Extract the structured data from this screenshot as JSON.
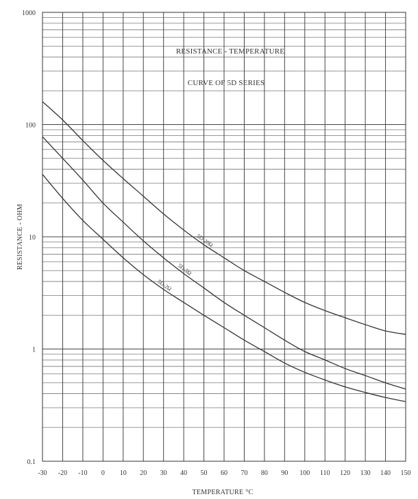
{
  "chart_data": {
    "type": "line",
    "title": "RESISTANCE - TEMPERATURE",
    "subtitle": "CURVE OF 5D SERIES",
    "xlabel": "TEMPERATURE °C",
    "ylabel": "RESISTANCE - OHM",
    "xlim": [
      -30,
      150
    ],
    "ylim": [
      0.1,
      1000
    ],
    "yscale": "log",
    "grid": true,
    "x_ticks": [
      -30,
      -20,
      -10,
      0,
      10,
      20,
      30,
      40,
      50,
      60,
      70,
      80,
      90,
      100,
      110,
      120,
      130,
      140,
      150
    ],
    "y_ticks": [
      0.1,
      1,
      10,
      100,
      1000
    ],
    "x_tick_labels": [
      "-30",
      "-20",
      "-10",
      "0",
      "10",
      "20",
      "30",
      "40",
      "50",
      "60",
      "70",
      "80",
      "90",
      "100",
      "110",
      "120",
      "130",
      "140",
      "150"
    ],
    "y_tick_labels": [
      "0.1",
      "1",
      "10",
      "100",
      "1000"
    ],
    "x": [
      -30,
      -20,
      -10,
      0,
      10,
      20,
      30,
      40,
      50,
      60,
      70,
      80,
      90,
      100,
      110,
      120,
      130,
      140,
      150
    ],
    "series": [
      {
        "name": "5D-20Ω",
        "values": [
          160,
          110,
          72,
          48,
          33,
          23,
          16,
          11.5,
          8.5,
          6.5,
          5.0,
          4.0,
          3.2,
          2.6,
          2.2,
          1.9,
          1.65,
          1.45,
          1.35
        ]
      },
      {
        "name": "5D-5Ω",
        "values": [
          78,
          50,
          32,
          20,
          13.5,
          9.2,
          6.5,
          4.7,
          3.5,
          2.6,
          2.0,
          1.55,
          1.2,
          0.95,
          0.8,
          0.67,
          0.58,
          0.5,
          0.44
        ]
      },
      {
        "name": "5D-2Ω",
        "values": [
          36,
          22,
          14,
          9.5,
          6.5,
          4.6,
          3.4,
          2.6,
          2.0,
          1.55,
          1.2,
          0.95,
          0.75,
          0.62,
          0.53,
          0.46,
          0.41,
          0.37,
          0.34
        ]
      }
    ]
  }
}
